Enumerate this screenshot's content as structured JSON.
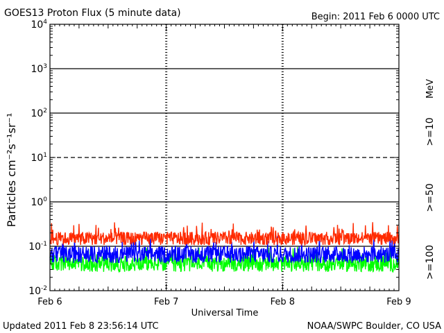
{
  "header": {
    "title": "GOES13 Proton Flux (5 minute data)",
    "begin": "Begin: 2011 Feb 6 0000 UTC"
  },
  "footer": {
    "updated": "Updated 2011 Feb  8 23:56:14 UTC",
    "credit": "NOAA/SWPC Boulder, CO USA"
  },
  "chart_data": {
    "type": "line",
    "title": "GOES13 Proton Flux (5 minute data)",
    "xlabel": "Universal Time",
    "ylabel": "Particles cm⁻²s⁻¹sr⁻¹",
    "y_scale": "log",
    "ylim": [
      0.01,
      10000
    ],
    "xlim": [
      "2011-02-06",
      "2011-02-09"
    ],
    "x_ticks": [
      "Feb 6",
      "Feb 7",
      "Feb 8",
      "Feb 9"
    ],
    "y_ticks": [
      {
        "base": "10",
        "exp": "-2"
      },
      {
        "base": "10",
        "exp": "-1"
      },
      {
        "base": "10",
        "exp": "0"
      },
      {
        "base": "10",
        "exp": "1"
      },
      {
        "base": "10",
        "exp": "2"
      },
      {
        "base": "10",
        "exp": "3"
      },
      {
        "base": "10",
        "exp": "4"
      }
    ],
    "grid": "horizontal at decades; dashed at 10^1",
    "units_label": "MeV",
    "series": [
      {
        "name": ">=10",
        "color": "#ff2a00",
        "typical": 0.15,
        "range": [
          0.1,
          0.35
        ]
      },
      {
        "name": ">=50",
        "color": "#0000ff",
        "typical": 0.065,
        "range": [
          0.035,
          0.17
        ]
      },
      {
        "name": ">=100",
        "color": "#00ff00",
        "typical": 0.04,
        "range": [
          0.022,
          0.1
        ]
      }
    ]
  }
}
